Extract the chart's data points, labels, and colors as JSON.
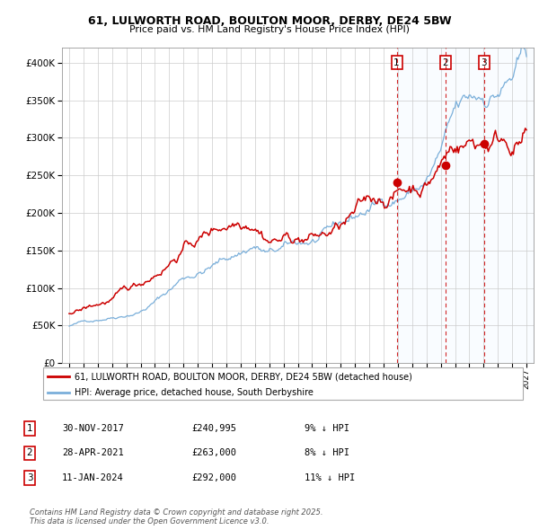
{
  "title1": "61, LULWORTH ROAD, BOULTON MOOR, DERBY, DE24 5BW",
  "title2": "Price paid vs. HM Land Registry's House Price Index (HPI)",
  "legend_red": "61, LULWORTH ROAD, BOULTON MOOR, DERBY, DE24 5BW (detached house)",
  "legend_blue": "HPI: Average price, detached house, South Derbyshire",
  "transactions": [
    {
      "num": 1,
      "date": "30-NOV-2017",
      "price": 240995,
      "pct": "9%",
      "direction": "↓"
    },
    {
      "num": 2,
      "date": "28-APR-2021",
      "price": 263000,
      "pct": "8%",
      "direction": "↓"
    },
    {
      "num": 3,
      "date": "11-JAN-2024",
      "price": 292000,
      "pct": "11%",
      "direction": "↓"
    }
  ],
  "transaction_years": [
    2017.92,
    2021.32,
    2024.03
  ],
  "transaction_prices_red": [
    240995,
    263000,
    292000
  ],
  "year_start": 1995,
  "year_end": 2027,
  "ylim_max": 420000,
  "background_color": "#ffffff",
  "grid_color": "#cccccc",
  "red_color": "#cc0000",
  "blue_color": "#7aafda",
  "shade_color": "#ddeeff",
  "footer": "Contains HM Land Registry data © Crown copyright and database right 2025.\nThis data is licensed under the Open Government Licence v3.0."
}
